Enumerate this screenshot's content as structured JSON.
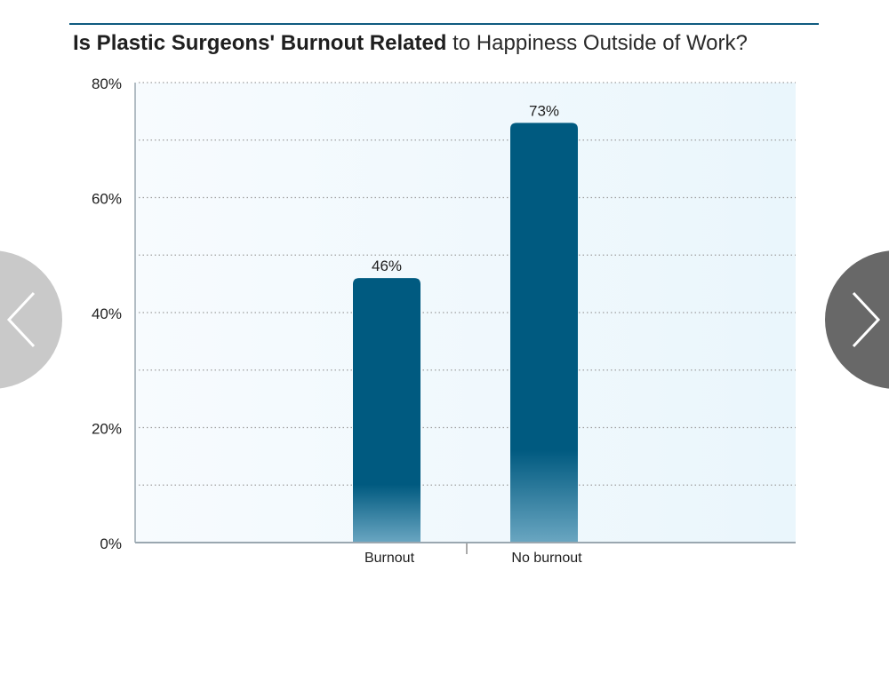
{
  "title": {
    "bold": "Is Plastic Surgeons' Burnout Related",
    "rest": "to Happiness Outside of Work?"
  },
  "colors": {
    "rule": "#0f5b80",
    "bar_top": "#005a80",
    "bar_bottom": "#6aa6c1",
    "plot_bg_left": "#f7fbfe",
    "plot_bg_right": "#eaf6fc",
    "grid": "#9e9e9e",
    "axis": "#9aa7b0"
  },
  "navigation": {
    "prev_icon": "chevron-left-icon",
    "next_icon": "chevron-right-icon"
  },
  "chart_data": {
    "type": "bar",
    "title": "Is Plastic Surgeons' Burnout Related to Happiness Outside of Work?",
    "categories": [
      "Burnout",
      "No burnout"
    ],
    "values": [
      46,
      73
    ],
    "value_labels": [
      "46%",
      "73%"
    ],
    "ylim": [
      0,
      80
    ],
    "y_ticks": [
      0,
      20,
      40,
      60,
      80
    ],
    "y_tick_labels": [
      "0%",
      "20%",
      "40%",
      "60%",
      "80%"
    ],
    "grid": true,
    "grid_style": "dotted",
    "legend": "none",
    "xlabel": "",
    "ylabel": ""
  }
}
